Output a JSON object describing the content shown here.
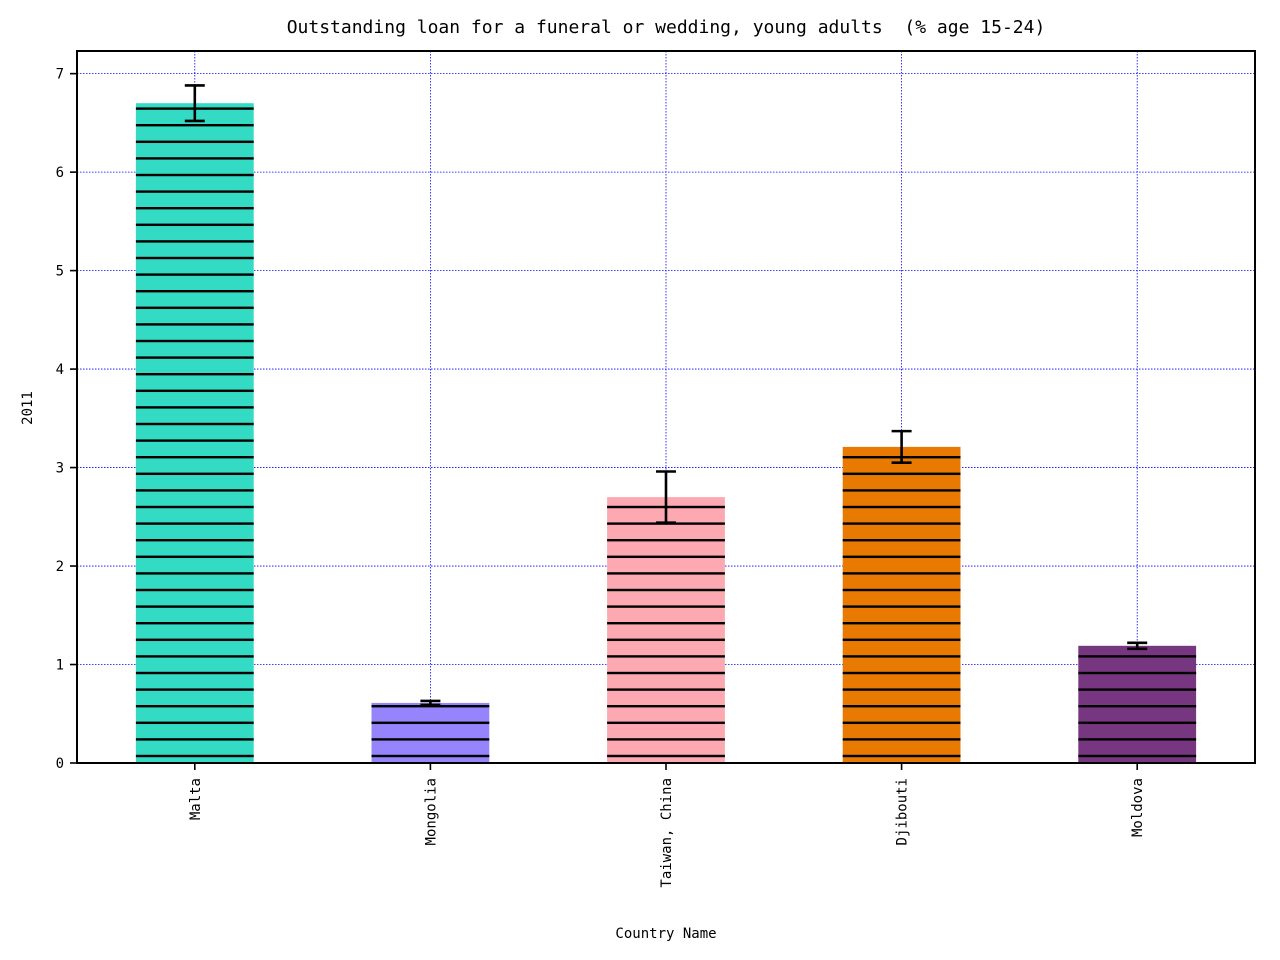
{
  "chart_data": {
    "type": "bar",
    "title": "Outstanding loan for a funeral or wedding, young adults  (% age 15-24)",
    "xlabel": "Country Name",
    "ylabel": "2011",
    "categories": [
      "Malta",
      "Mongolia",
      "Taiwan, China",
      "Djibouti",
      "Moldova"
    ],
    "values": [
      6.7,
      0.61,
      2.7,
      3.21,
      1.19
    ],
    "errors": [
      0.18,
      0.02,
      0.26,
      0.16,
      0.03
    ],
    "colors": [
      "#33dbc4",
      "#9584fb",
      "#fda9b2",
      "#e87a02",
      "#773680"
    ],
    "ylim": [
      0,
      7.23
    ],
    "yticks": [
      0,
      1,
      2,
      3,
      4,
      5,
      6,
      7
    ],
    "grid": true,
    "grid_color": "#0000ff",
    "hatch": "horizontal lines"
  }
}
